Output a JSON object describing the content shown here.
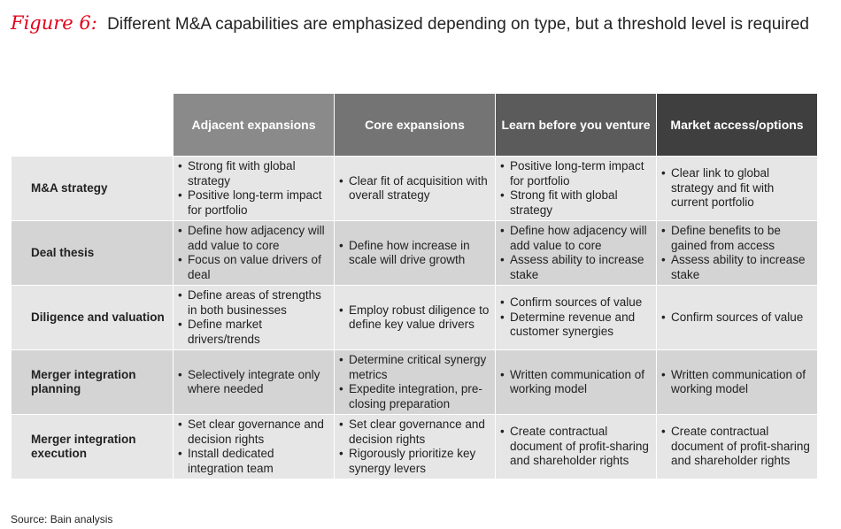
{
  "title": {
    "figure_label": "Figure 6:",
    "text": "Different M&A capabilities are emphasized depending on type, but a threshold level is required"
  },
  "colors": {
    "figure_label": "#e2001a",
    "header_shades": [
      "#8a8a8a",
      "#747474",
      "#5b5b5b",
      "#3f3f3f"
    ],
    "row_odd": "#e6e6e6",
    "row_even": "#d4d4d4"
  },
  "chart_data": {
    "type": "table",
    "columns": [
      "Adjacent expansions",
      "Core expansions",
      "Learn before you venture",
      "Market access/options"
    ],
    "rows": [
      {
        "label": "M&A strategy",
        "cells": [
          [
            "Strong fit with global strategy",
            "Positive long-term impact for portfolio"
          ],
          [
            "Clear fit of acquisition with overall strategy"
          ],
          [
            "Positive long-term impact for portfolio",
            "Strong fit with global strategy"
          ],
          [
            "Clear link to global strategy and fit with current portfolio"
          ]
        ]
      },
      {
        "label": "Deal thesis",
        "cells": [
          [
            "Define how adjacency will add value to core",
            "Focus on value drivers of deal"
          ],
          [
            "Define how increase in scale will drive growth"
          ],
          [
            "Define how adjacency will add value to core",
            "Assess ability to increase stake"
          ],
          [
            "Define benefits to be gained from access",
            "Assess ability to increase stake"
          ]
        ]
      },
      {
        "label": "Diligence and valuation",
        "cells": [
          [
            "Define areas of strengths in both businesses",
            "Define market drivers/trends"
          ],
          [
            "Employ robust diligence to define key value drivers"
          ],
          [
            "Confirm sources of value",
            "Determine revenue and customer synergies"
          ],
          [
            "Confirm sources of value"
          ]
        ]
      },
      {
        "label": "Merger integration planning",
        "cells": [
          [
            "Selectively integrate only where needed"
          ],
          [
            "Determine critical synergy metrics",
            "Expedite integration, pre-closing preparation"
          ],
          [
            "Written communication of working model"
          ],
          [
            "Written communication of working model"
          ]
        ]
      },
      {
        "label": "Merger integration execution",
        "cells": [
          [
            "Set clear governance and decision rights",
            "Install dedicated integration team"
          ],
          [
            "Set clear governance and decision rights",
            "Rigorously prioritize key synergy levers"
          ],
          [
            "Create contractual document of profit-sharing and shareholder rights"
          ],
          [
            "Create contractual document of profit-sharing and shareholder rights"
          ]
        ]
      }
    ]
  },
  "source": "Source: Bain analysis"
}
